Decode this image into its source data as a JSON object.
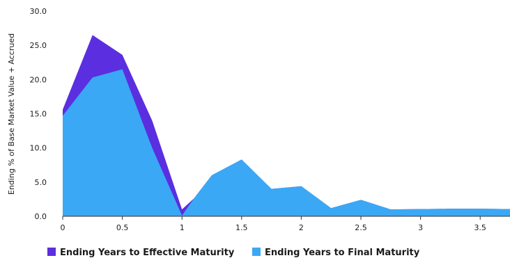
{
  "chart_data": {
    "type": "area",
    "title": "",
    "xlabel": "",
    "ylabel": "Ending % of Base Market Value + Accrued",
    "xlim": [
      0,
      3.75
    ],
    "ylim": [
      0,
      30
    ],
    "x_ticks": [
      "0",
      "0.5",
      "1",
      "1.5",
      "2",
      "2.5",
      "3",
      "3.5"
    ],
    "y_ticks": [
      "0.0",
      "5.0",
      "10.0",
      "15.0",
      "20.0",
      "25.0",
      "30.0"
    ],
    "grid": false,
    "legend_position": "bottom",
    "x": [
      0,
      0.25,
      0.5,
      0.75,
      1.0,
      1.1,
      1.25,
      1.5,
      1.75,
      2.0,
      2.25,
      2.5,
      2.75,
      3.0,
      3.25,
      3.5,
      3.75
    ],
    "series": [
      {
        "name": "Ending Years to Effective Maturity",
        "color": "#5b2ee0",
        "values": [
          15.6,
          26.5,
          23.6,
          14.0,
          1.0,
          2.6,
          6.0,
          8.3,
          4.0,
          4.4,
          1.2,
          2.4,
          1.0,
          1.05,
          1.1,
          1.1,
          1.05
        ]
      },
      {
        "name": "Ending Years to Final Maturity",
        "color": "#3aa8f5",
        "values": [
          14.7,
          20.3,
          21.5,
          10.0,
          0.1,
          2.6,
          6.0,
          8.3,
          4.0,
          4.4,
          1.2,
          2.4,
          1.0,
          1.05,
          1.1,
          1.1,
          1.05
        ]
      }
    ]
  }
}
